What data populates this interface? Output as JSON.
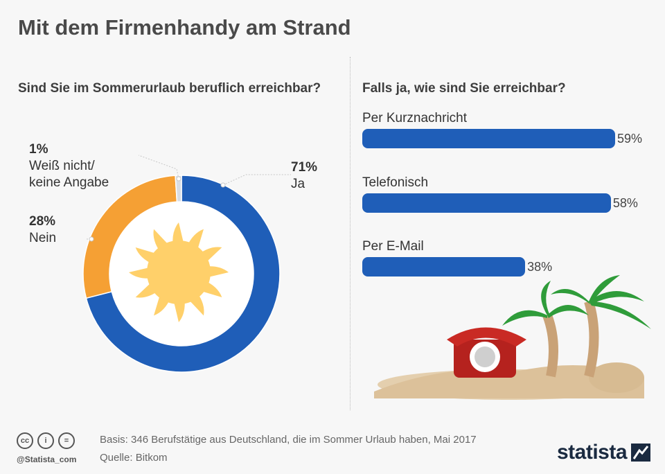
{
  "title": "Mit dem Firmenhandy am Strand",
  "left_question": "Sind Sie im Sommerurlaub beruflich erreichbar?",
  "right_question": "Falls ja, wie sind Sie erreichbar?",
  "chart_data": [
    {
      "type": "pie",
      "title": "Sind Sie im Sommerurlaub beruflich erreichbar?",
      "slices": [
        {
          "label": "Ja",
          "value": 71,
          "display": "71%",
          "color": "#1f5eb8"
        },
        {
          "label": "Nein",
          "value": 28,
          "display": "28%",
          "color": "#f5a034"
        },
        {
          "label_lines": [
            "Weiß nicht/",
            "keine Angabe"
          ],
          "value": 1,
          "display": "1%",
          "color": "#d8dde5"
        }
      ]
    },
    {
      "type": "bar",
      "orientation": "horizontal",
      "title": "Falls ja, wie sind Sie erreichbar?",
      "categories": [
        "Per Kurznachricht",
        "Telefonisch",
        "Per E-Mail"
      ],
      "values": [
        59,
        58,
        38
      ],
      "value_labels": [
        "59%",
        "58%",
        "38%"
      ],
      "xlim": [
        0,
        59
      ],
      "color": "#1f5eb8"
    }
  ],
  "footer": {
    "basis": "Basis: 346 Berufstätige aus Deutschland, die im Sommer Urlaub haben, Mai 2017",
    "source": "Quelle: Bitkom",
    "handle": "@Statista_com",
    "cc_icons": [
      "cc",
      "i",
      "="
    ],
    "logo": "statista"
  }
}
